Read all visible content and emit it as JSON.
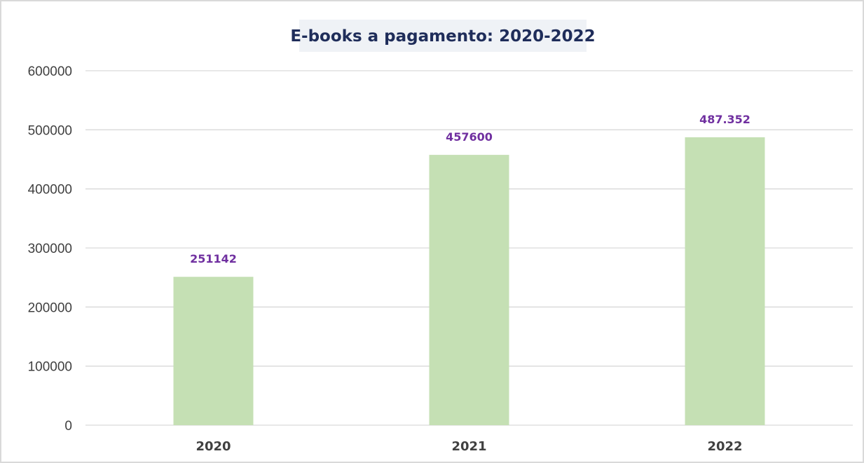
{
  "chart_data": {
    "type": "bar",
    "title": "E-books a pagamento: 2020-2022",
    "xlabel": "",
    "ylabel": "",
    "categories": [
      "2020",
      "2021",
      "2022"
    ],
    "values": [
      251142,
      457600,
      487352
    ],
    "data_labels": [
      "251142",
      "457600",
      "487.352"
    ],
    "ylim": [
      0,
      600000
    ],
    "yticks": [
      "0",
      "100000",
      "200000",
      "300000",
      "400000",
      "500000",
      "600000"
    ],
    "grid": true,
    "legend": "none",
    "colors": {
      "bar": "#c5e0b4",
      "data_label": "#7030a0",
      "title_text": "#1f2d5a",
      "title_background": "#eff2f6",
      "grid": "#d9d9d9"
    }
  }
}
